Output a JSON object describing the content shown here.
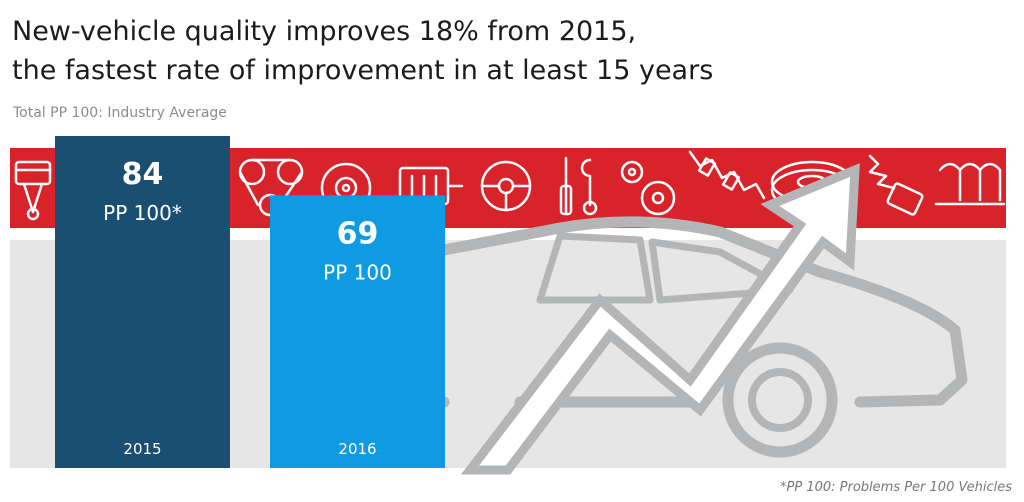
{
  "header": {
    "title": "New-vehicle quality improves 18% from 2015, the fastest rate of improvement in at least 15 years",
    "subtitle": "Total PP 100: Industry Average"
  },
  "footnote": "*PP 100: Problems Per 100 Vehicles",
  "colors": {
    "banner_red": "#d8232a",
    "bar_2015": "#1b4f72",
    "bar_2016": "#0f9be2",
    "background_band": "#e6e6e6",
    "illustration": "#b3b5b7"
  },
  "icons": [
    "piston-icon",
    "timing-belt-icon",
    "brake-rotor-icon",
    "gear-shift-icon",
    "steering-wheel-icon",
    "tools-icon",
    "gears-icon",
    "crankshaft-icon",
    "tire-icon",
    "shock-absorber-icon",
    "exhaust-manifold-icon",
    "car-outline-icon",
    "rising-arrow-icon"
  ],
  "chart_data": {
    "type": "bar",
    "title": "",
    "xlabel": "",
    "ylabel": "",
    "ylim": [
      0,
      100
    ],
    "categories": [
      "2015",
      "2016"
    ],
    "values": [
      84,
      69
    ],
    "value_labels": [
      "PP 100*",
      "PP 100"
    ]
  }
}
